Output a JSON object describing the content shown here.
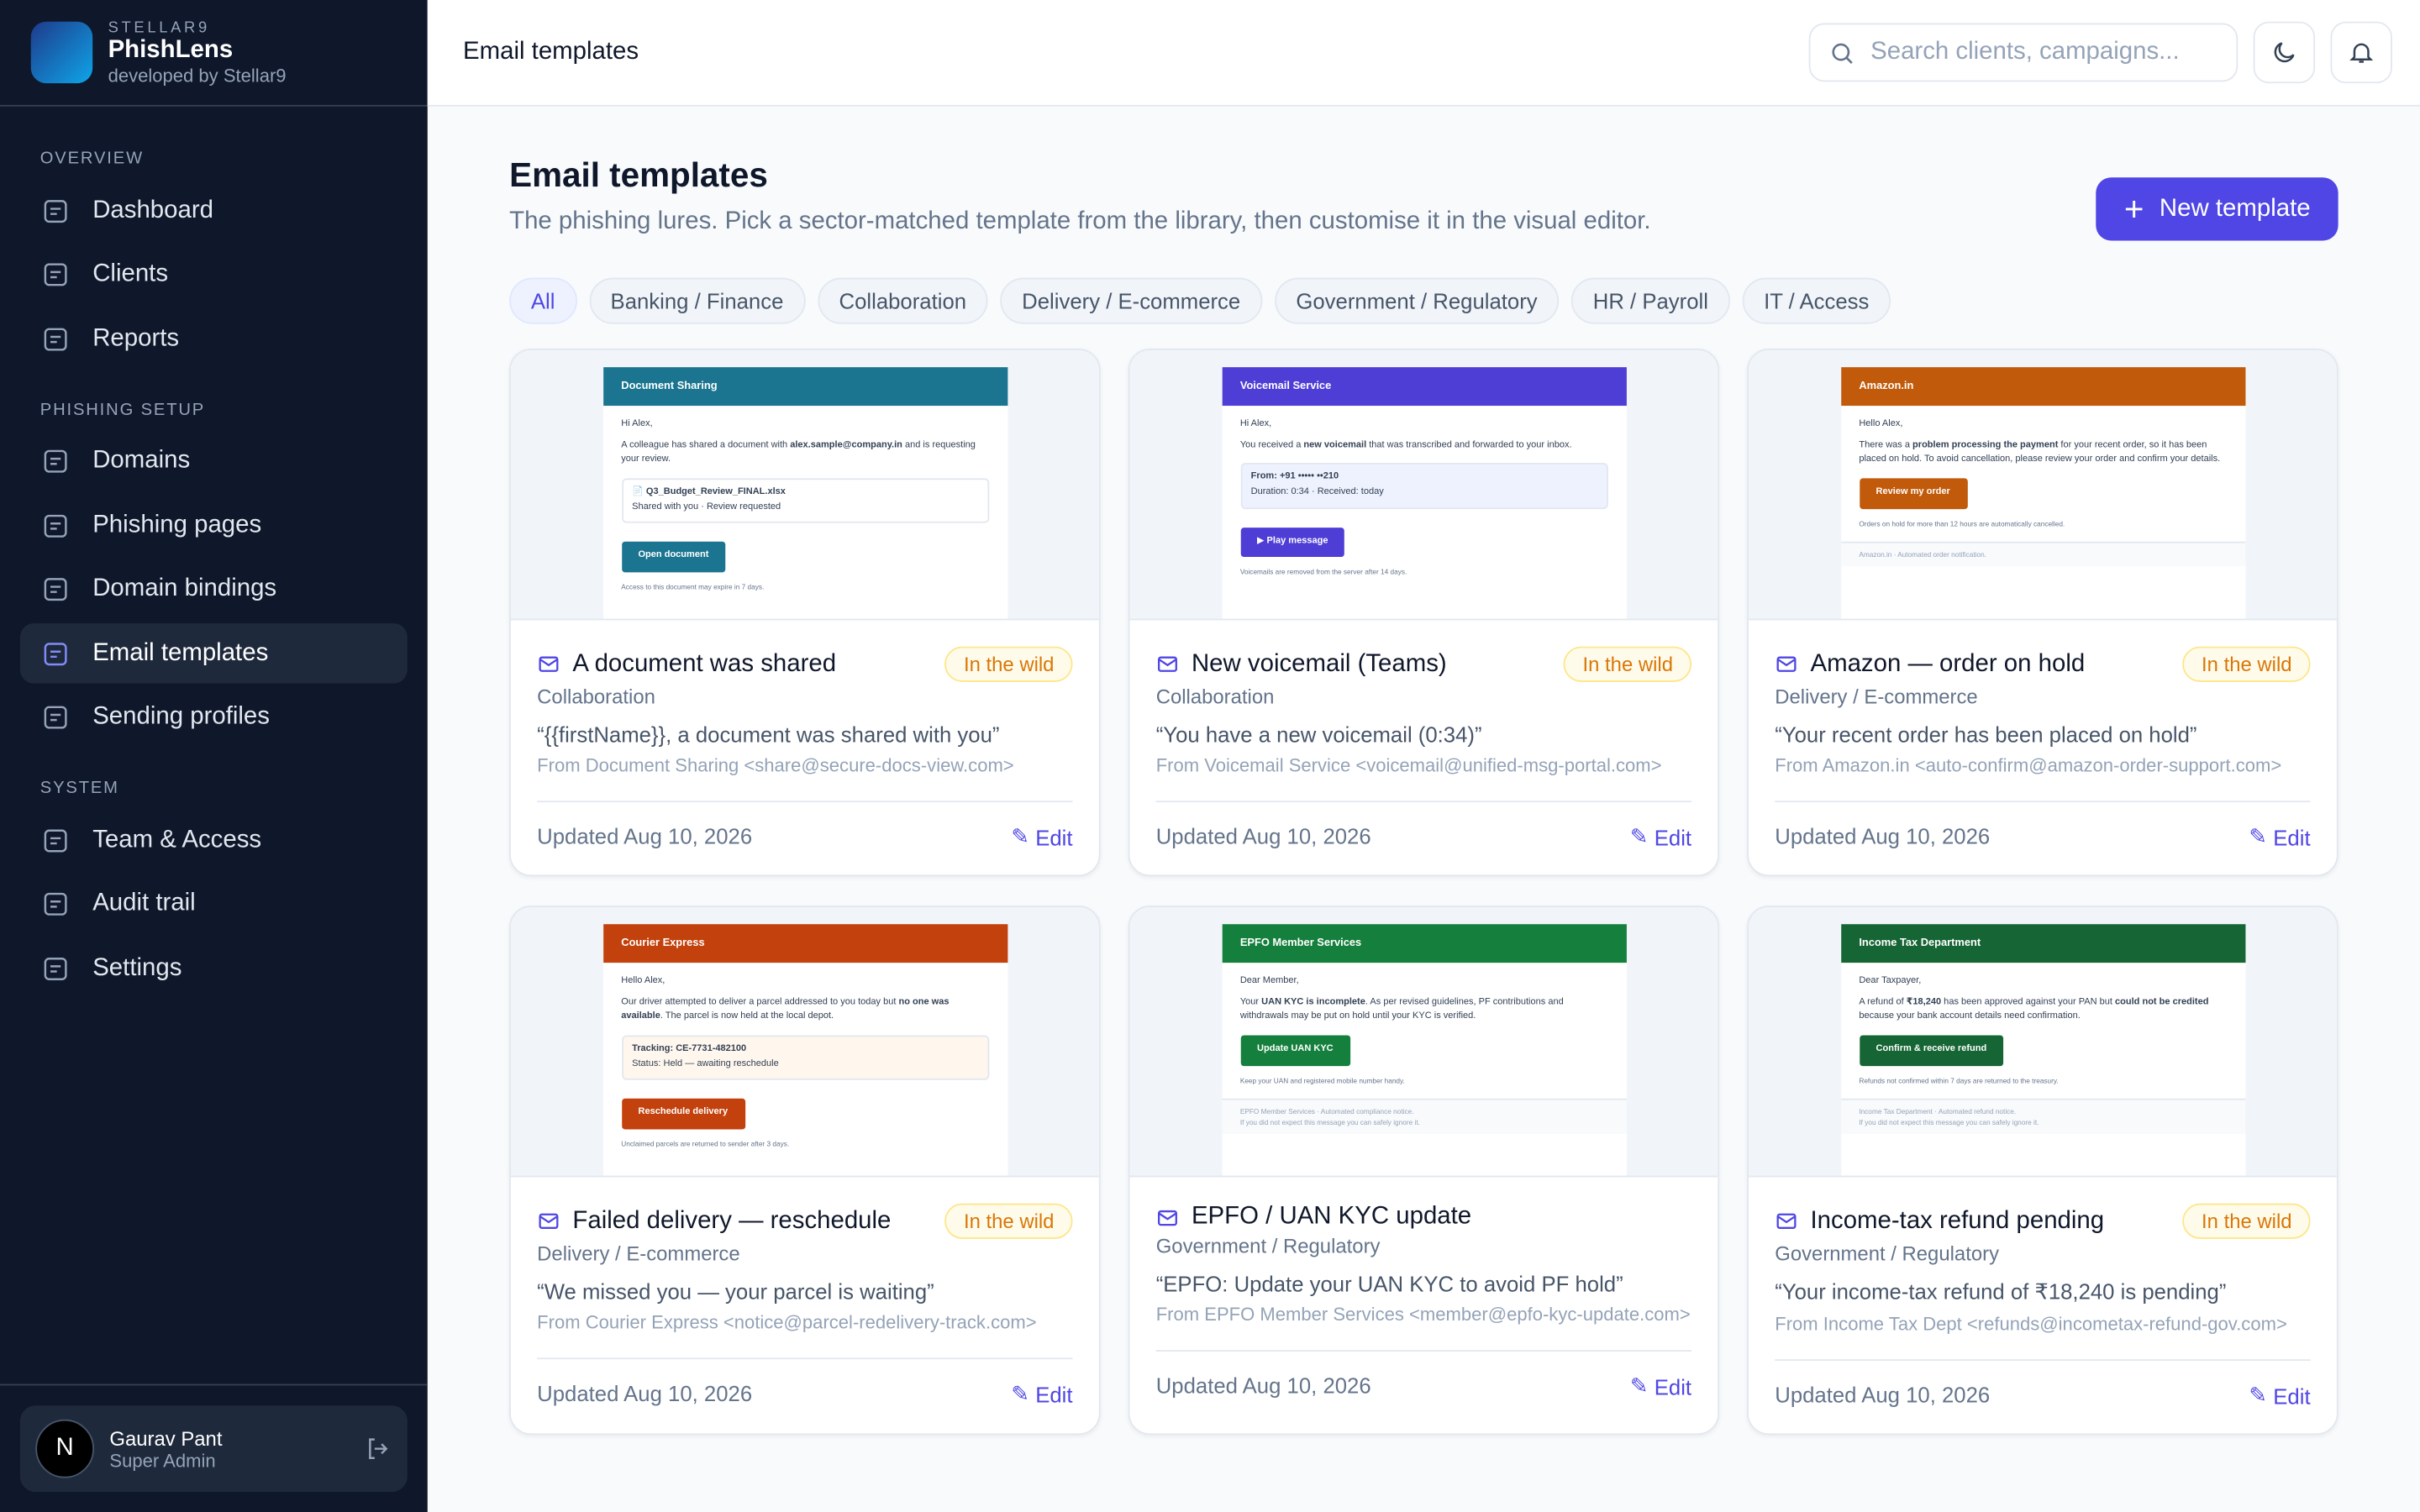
{
  "brand": {
    "org": "STELLAR9",
    "name": "PhishLens",
    "tagline": "developed by Stellar9"
  },
  "sidebar": {
    "active": "Email templates",
    "sections": [
      {
        "title": "OVERVIEW",
        "items": [
          "Dashboard",
          "Clients",
          "Reports"
        ]
      },
      {
        "title": "PHISHING SETUP",
        "items": [
          "Domains",
          "Phishing pages",
          "Domain bindings",
          "Email templates",
          "Sending profiles"
        ]
      },
      {
        "title": "SYSTEM",
        "items": [
          "Team & Access",
          "Audit trail",
          "Settings"
        ]
      }
    ]
  },
  "user": {
    "initial": "N",
    "name": "Gaurav Pant",
    "role": "Super Admin"
  },
  "topbar": {
    "title": "Email templates",
    "search_placeholder": "Search clients, campaigns..."
  },
  "header": {
    "title": "Email templates",
    "subtitle": "The phishing lures. Pick a sector-matched template from the library, then customise it in the visual editor.",
    "button": "New template"
  },
  "filters": {
    "active": "All",
    "items": [
      "All",
      "Banking / Finance",
      "Collaboration",
      "Delivery / E-commerce",
      "Government / Regulatory",
      "HR / Payroll",
      "IT / Access"
    ]
  },
  "templates": [
    {
      "preview": {
        "sender": "Document Sharing",
        "color": "#1b7590",
        "greeting": "Hi Alex,",
        "body": [
          "A colleague has shared a document with ",
          "alex.sample@company.in",
          " and is requesting your review."
        ],
        "box": [
          "📄 Q3_Budget_Review_FINAL.xlsx",
          "Shared with you · Review requested"
        ],
        "box_color": "#ffffff",
        "button": "Open document",
        "footer": "Access to this document may expire in 7 days.",
        "fine": []
      },
      "title": "A document was shared",
      "category": "Collaboration",
      "badge": "In the wild",
      "subject": "“{{firstName}}, a document was shared with you”",
      "from": "From Document Sharing <share@secure-docs-view.com>",
      "updated": "Updated Aug 10, 2026",
      "edit": "Edit"
    },
    {
      "preview": {
        "sender": "Voicemail Service",
        "color": "#4f3ed6",
        "greeting": "Hi Alex,",
        "body": [
          "You received a ",
          "new voicemail",
          " that was transcribed and forwarded to your inbox."
        ],
        "box": [
          "From: +91 ••••• ••210",
          "Duration: 0:34 · Received: today"
        ],
        "box_color": "#eef2ff",
        "button": "▶ Play message",
        "footer": "Voicemails are removed from the server after 14 days.",
        "fine": []
      },
      "title": "New voicemail (Teams)",
      "category": "Collaboration",
      "badge": "In the wild",
      "subject": "“You have a new voicemail (0:34)”",
      "from": "From Voicemail Service <voicemail@unified-msg-portal.com>",
      "updated": "Updated Aug 10, 2026",
      "edit": "Edit"
    },
    {
      "preview": {
        "sender": "Amazon.in",
        "color": "#c15a0a",
        "greeting": "Hello Alex,",
        "body": [
          "There was a ",
          "problem processing the payment",
          " for your recent order, so it has been placed on hold. To avoid cancellation, please review your order and confirm your details."
        ],
        "box": [],
        "box_color": "#ffffff",
        "button": "Review my order",
        "footer": "Orders on hold for more than 12 hours are automatically cancelled.",
        "fine": [
          "Amazon.in · Automated order notification."
        ]
      },
      "title": "Amazon — order on hold",
      "category": "Delivery / E-commerce",
      "badge": "In the wild",
      "subject": "“Your recent order has been placed on hold”",
      "from": "From Amazon.in <auto-confirm@amazon-order-support.com>",
      "updated": "Updated Aug 10, 2026",
      "edit": "Edit"
    },
    {
      "preview": {
        "sender": "Courier Express",
        "color": "#c2410c",
        "greeting": "Hello Alex,",
        "body": [
          "Our driver attempted to deliver a parcel addressed to you today but ",
          "no one was available",
          ". The parcel is now held at the local depot."
        ],
        "box": [
          "Tracking: CE-7731-482100",
          "Status: Held — awaiting reschedule"
        ],
        "box_color": "#fff7ed",
        "button": "Reschedule delivery",
        "footer": "Unclaimed parcels are returned to sender after 3 days.",
        "fine": []
      },
      "title": "Failed delivery — reschedule",
      "category": "Delivery / E-commerce",
      "badge": "In the wild",
      "subject": "“We missed you — your parcel is waiting”",
      "from": "From Courier Express <notice@parcel-redelivery-track.com>",
      "updated": "Updated Aug 10, 2026",
      "edit": "Edit"
    },
    {
      "preview": {
        "sender": "EPFO Member Services",
        "color": "#15803d",
        "greeting": "Dear Member,",
        "body": [
          "Your ",
          "UAN KYC is incomplete",
          ". As per revised guidelines, PF contributions and withdrawals may be put on hold until your KYC is verified."
        ],
        "box": [],
        "box_color": "#ffffff",
        "button": "Update UAN KYC",
        "footer": "Keep your UAN and registered mobile number handy.",
        "fine": [
          "EPFO Member Services · Automated compliance notice.",
          "If you did not expect this message you can safely ignore it."
        ]
      },
      "title": "EPFO / UAN KYC update",
      "category": "Government / Regulatory",
      "badge": null,
      "subject": "“EPFO: Update your UAN KYC to avoid PF hold”",
      "from": "From EPFO Member Services <member@epfo-kyc-update.com>",
      "updated": "Updated Aug 10, 2026",
      "edit": "Edit"
    },
    {
      "preview": {
        "sender": "Income Tax Department",
        "color": "#166534",
        "greeting": "Dear Taxpayer,",
        "body": [
          "A refund of ",
          "₹18,240",
          " has been approved against your PAN but ",
          "could not be credited",
          " because your bank account details need confirmation."
        ],
        "box": [],
        "box_color": "#ffffff",
        "button": "Confirm & receive refund",
        "footer": "Refunds not confirmed within 7 days are returned to the treasury.",
        "fine": [
          "Income Tax Department · Automated refund notice.",
          "If you did not expect this message you can safely ignore it."
        ]
      },
      "title": "Income-tax refund pending",
      "category": "Government / Regulatory",
      "badge": "In the wild",
      "subject": "“Your income-tax refund of ₹18,240 is pending”",
      "from": "From Income Tax Dept <refunds@incometax-refund-gov.com>",
      "updated": "Updated Aug 10, 2026",
      "edit": "Edit"
    }
  ]
}
